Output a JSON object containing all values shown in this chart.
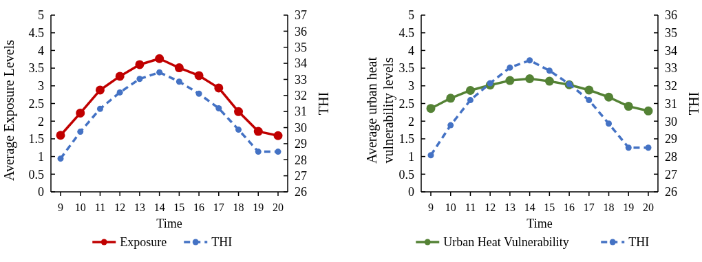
{
  "chart_data": [
    {
      "type": "line",
      "xlabel": "Time",
      "ylabel": "Average Exposure Levels",
      "y2label": "THI",
      "categories": [
        "9",
        "10",
        "11",
        "12",
        "13",
        "14",
        "15",
        "16",
        "17",
        "18",
        "19",
        "20"
      ],
      "ylim": [
        0,
        5
      ],
      "yticks": [
        0,
        0.5,
        1,
        1.5,
        2,
        2.5,
        3,
        3.5,
        4,
        4.5,
        5
      ],
      "y2lim": [
        26,
        37
      ],
      "y2ticks": [
        26,
        27,
        28,
        29,
        30,
        31,
        32,
        33,
        34,
        35,
        36,
        37
      ],
      "grid": false,
      "legend": "bottom",
      "marker": "circle",
      "series": [
        {
          "name": "Exposure",
          "color": "#c00000",
          "line_style": "solid",
          "values": [
            1.6,
            2.23,
            2.88,
            3.27,
            3.6,
            3.77,
            3.51,
            3.29,
            2.94,
            2.27,
            1.71,
            1.59
          ]
        },
        {
          "name": "THI",
          "color": "#4472c4",
          "line_style": "dashed",
          "axis": "y2",
          "values": [
            28.07,
            29.74,
            31.17,
            32.19,
            33.03,
            33.44,
            32.86,
            32.11,
            31.2,
            29.87,
            28.5,
            28.5
          ]
        }
      ]
    },
    {
      "type": "line",
      "xlabel": "Time",
      "ylabel": "Average urban heat vulnerability levels",
      "y2label": "THI",
      "categories": [
        "9",
        "10",
        "11",
        "12",
        "13",
        "14",
        "15",
        "16",
        "17",
        "18",
        "19",
        "20"
      ],
      "ylim": [
        0,
        5
      ],
      "yticks": [
        0,
        0.5,
        1,
        1.5,
        2,
        2.5,
        3,
        3.5,
        4,
        4.5,
        5
      ],
      "y2lim": [
        26,
        36
      ],
      "y2ticks": [
        26,
        27,
        28,
        29,
        30,
        31,
        32,
        33,
        34,
        35,
        36
      ],
      "grid": false,
      "legend": "bottom",
      "marker": "circle",
      "series": [
        {
          "name": "Urban Heat Vulnerability",
          "color": "#548235",
          "line_style": "solid",
          "values": [
            2.36,
            2.65,
            2.87,
            3.02,
            3.15,
            3.2,
            3.13,
            3.03,
            2.88,
            2.68,
            2.42,
            2.29
          ]
        },
        {
          "name": "THI",
          "color": "#4472c4",
          "line_style": "dashed",
          "axis": "y2",
          "values": [
            28.07,
            29.77,
            31.19,
            32.15,
            33.03,
            33.44,
            32.86,
            32.1,
            31.19,
            29.86,
            28.5,
            28.5
          ]
        }
      ]
    }
  ]
}
